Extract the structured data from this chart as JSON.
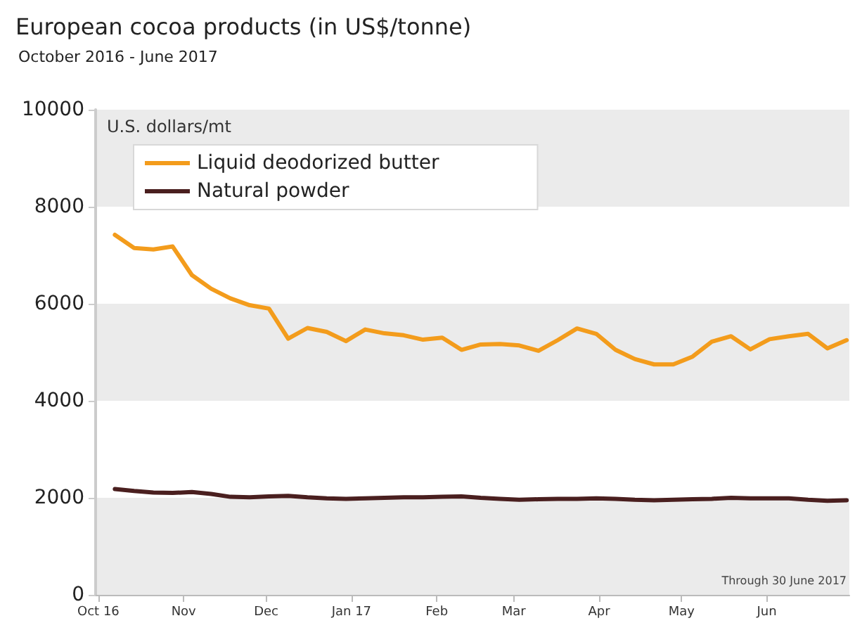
{
  "chart_data": {
    "type": "line",
    "title": "European cocoa products (in US$/tonne)",
    "subtitle": "October 2016 - June 2017",
    "ylabel": "U.S. dollars/mt",
    "x": [
      "2016-10-07",
      "2016-10-14",
      "2016-10-21",
      "2016-10-28",
      "2016-11-04",
      "2016-11-11",
      "2016-11-18",
      "2016-11-25",
      "2016-12-02",
      "2016-12-09",
      "2016-12-16",
      "2016-12-23",
      "2016-12-30",
      "2017-01-06",
      "2017-01-13",
      "2017-01-20",
      "2017-01-27",
      "2017-02-03",
      "2017-02-10",
      "2017-02-17",
      "2017-02-24",
      "2017-03-03",
      "2017-03-10",
      "2017-03-17",
      "2017-03-24",
      "2017-03-31",
      "2017-04-07",
      "2017-04-14",
      "2017-04-21",
      "2017-04-28",
      "2017-05-05",
      "2017-05-12",
      "2017-05-19",
      "2017-05-26",
      "2017-06-02",
      "2017-06-09",
      "2017-06-16",
      "2017-06-23",
      "2017-06-30"
    ],
    "series": [
      {
        "name": "Liquid deodorized butter",
        "color": "#f39c1c",
        "values": [
          7420,
          7150,
          7120,
          7180,
          6590,
          6310,
          6110,
          5970,
          5900,
          5280,
          5500,
          5420,
          5230,
          5470,
          5390,
          5350,
          5260,
          5300,
          5050,
          5160,
          5170,
          5140,
          5030,
          5250,
          5490,
          5380,
          5050,
          4860,
          4750,
          4750,
          4910,
          5220,
          5330,
          5060,
          5270,
          5330,
          5380,
          5080,
          5250
        ]
      },
      {
        "name": "Natural powder",
        "color": "#4a1f1f",
        "values": [
          2180,
          2140,
          2110,
          2100,
          2120,
          2080,
          2020,
          2010,
          2030,
          2040,
          2010,
          1990,
          1980,
          1990,
          2000,
          2010,
          2010,
          2020,
          2030,
          2000,
          1980,
          1960,
          1970,
          1980,
          1980,
          1990,
          1980,
          1960,
          1950,
          1960,
          1970,
          1980,
          2000,
          1990,
          1990,
          1990,
          1960,
          1940,
          1950
        ]
      }
    ],
    "xlim": [
      "2016-09-30",
      "2017-07-01"
    ],
    "xticks": [
      {
        "value": "2016-10-01",
        "label": "Oct 16"
      },
      {
        "value": "2016-11-01",
        "label": "Nov"
      },
      {
        "value": "2016-12-01",
        "label": "Dec"
      },
      {
        "value": "2017-01-01",
        "label": "Jan 17"
      },
      {
        "value": "2017-02-01",
        "label": "Feb"
      },
      {
        "value": "2017-03-01",
        "label": "Mar"
      },
      {
        "value": "2017-04-01",
        "label": "Apr"
      },
      {
        "value": "2017-05-01",
        "label": "May"
      },
      {
        "value": "2017-06-01",
        "label": "Jun"
      }
    ],
    "ylim": [
      0,
      10000
    ],
    "yticks": [
      0,
      2000,
      4000,
      6000,
      8000,
      10000
    ],
    "bands": [
      {
        "axis": "y",
        "from": 0,
        "to": 2000,
        "color": "#ebebeb"
      },
      {
        "axis": "y",
        "from": 4000,
        "to": 6000,
        "color": "#ebebeb"
      },
      {
        "axis": "y",
        "from": 8000,
        "to": 10000,
        "color": "#ebebeb"
      }
    ],
    "grid": false,
    "legend": "top left",
    "marker": "none",
    "line_style": "solid",
    "annotations": [
      "Through 30 June 2017"
    ]
  }
}
